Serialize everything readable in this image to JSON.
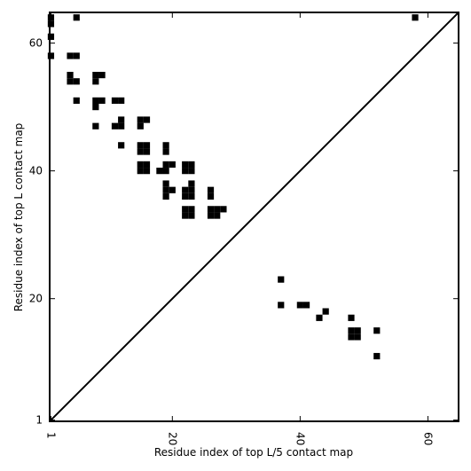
{
  "chart_data": {
    "type": "heatmap",
    "xlabel": "Residue index of top L/5 contact map",
    "ylabel": "Residue index of top L contact map",
    "xlim": [
      0.8,
      64.8
    ],
    "ylim": [
      0.8,
      64.8
    ],
    "xticks": [
      1,
      20,
      40,
      60
    ],
    "yticks": [
      1,
      20,
      40,
      60
    ],
    "diagonal": [
      [
        1,
        1
      ],
      [
        64.8,
        64.8
      ]
    ],
    "colors": {
      "contact": "#000000",
      "background": "#ffffff",
      "diagonal": "#000000"
    },
    "series": [
      {
        "region": "upper-left",
        "cells": [
          [
            1,
            64
          ],
          [
            1,
            63
          ],
          [
            1,
            61
          ],
          [
            1,
            58
          ],
          [
            5,
            64
          ],
          [
            4,
            58
          ],
          [
            5,
            58
          ],
          [
            4,
            55
          ],
          [
            4,
            54
          ],
          [
            5,
            54
          ],
          [
            8,
            55
          ],
          [
            8,
            54
          ],
          [
            9,
            55
          ],
          [
            5,
            51
          ],
          [
            8,
            51
          ],
          [
            8,
            50
          ],
          [
            9,
            51
          ],
          [
            11,
            51
          ],
          [
            12,
            51
          ],
          [
            8,
            47
          ],
          [
            12,
            48
          ],
          [
            12,
            47
          ],
          [
            11,
            47
          ],
          [
            15,
            48
          ],
          [
            16,
            48
          ],
          [
            15,
            47
          ],
          [
            12,
            44
          ],
          [
            15,
            44
          ],
          [
            16,
            44
          ],
          [
            15,
            43
          ],
          [
            16,
            43
          ],
          [
            19,
            44
          ],
          [
            19,
            43
          ],
          [
            15,
            41
          ],
          [
            16,
            41
          ],
          [
            15,
            40
          ],
          [
            16,
            40
          ],
          [
            19,
            41
          ],
          [
            20,
            41
          ],
          [
            18,
            40
          ],
          [
            19,
            40
          ],
          [
            22,
            41
          ],
          [
            22,
            40
          ],
          [
            23,
            40
          ],
          [
            23,
            41
          ],
          [
            19,
            38
          ],
          [
            19,
            37
          ],
          [
            20,
            37
          ],
          [
            19,
            36
          ],
          [
            22,
            37
          ],
          [
            23,
            37
          ],
          [
            22,
            36
          ],
          [
            23,
            36
          ],
          [
            23,
            38
          ],
          [
            26,
            37
          ],
          [
            26,
            36
          ],
          [
            22,
            34
          ],
          [
            23,
            34
          ],
          [
            22,
            33
          ],
          [
            23,
            33
          ],
          [
            26,
            34
          ],
          [
            27,
            34
          ],
          [
            28,
            34
          ],
          [
            26,
            33
          ],
          [
            27,
            33
          ],
          [
            58,
            64
          ]
        ]
      },
      {
        "region": "lower-right",
        "cells": [
          [
            37,
            23
          ],
          [
            37,
            19
          ],
          [
            40,
            19
          ],
          [
            41,
            19
          ],
          [
            43,
            17
          ],
          [
            44,
            18
          ],
          [
            48,
            17
          ],
          [
            48,
            15
          ],
          [
            49,
            15
          ],
          [
            48,
            14
          ],
          [
            49,
            14
          ],
          [
            52,
            15
          ],
          [
            52,
            11
          ]
        ]
      }
    ]
  }
}
